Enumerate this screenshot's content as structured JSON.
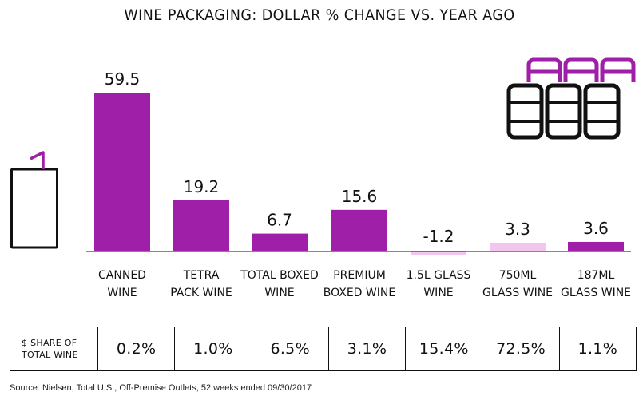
{
  "chart_data": {
    "type": "bar",
    "title": "WINE PACKAGING: DOLLAR % CHANGE VS. YEAR AGO",
    "categories": [
      [
        "CANNED",
        "WINE"
      ],
      [
        "TETRA",
        "PACK WINE"
      ],
      [
        "TOTAL BOXED",
        "WINE"
      ],
      [
        "PREMIUM",
        "BOXED WINE"
      ],
      [
        "1.5L GLASS",
        "WINE"
      ],
      [
        "750ML",
        "GLASS WINE"
      ],
      [
        "187ML",
        "GLASS WINE"
      ]
    ],
    "values": [
      59.5,
      19.2,
      6.7,
      15.6,
      -1.2,
      3.3,
      3.6
    ],
    "value_labels": [
      "59.5",
      "19.2",
      "6.7",
      "15.6",
      "-1.2",
      "3.3",
      "3.6"
    ],
    "bar_colors": [
      "#a01fa8",
      "#a01fa8",
      "#a01fa8",
      "#a01fa8",
      "#f3c6f0",
      "#f3c6f0",
      "#a01fa8"
    ],
    "ylim": [
      -1.2,
      59.5
    ],
    "grid": false,
    "legend": "none"
  },
  "share_table": {
    "header": [
      "$ SHARE OF",
      "TOTAL WINE"
    ],
    "values": [
      "0.2%",
      "1.0%",
      "6.5%",
      "3.1%",
      "15.4%",
      "72.5%",
      "1.1%"
    ]
  },
  "source": "Source: Nielsen, Total U.S., Off-Premise Outlets, 52 weeks ended 09/30/2017",
  "icons": {
    "left": "tetra-pack-carton-icon",
    "right": "wine-cans-icon",
    "accent_color": "#a01fa8",
    "outline_color": "#111111"
  }
}
